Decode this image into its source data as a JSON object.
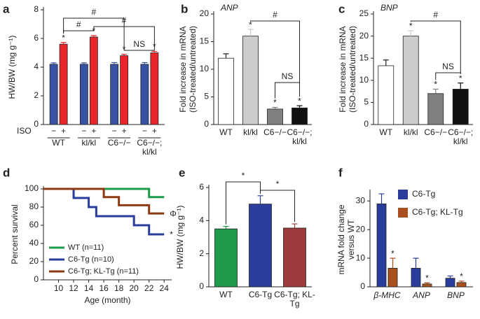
{
  "chart_data": [
    {
      "type": "bar",
      "panel_label": "a",
      "ylabel": "HW/BW (mg g⁻¹)",
      "categories": [
        "WT",
        "kl/kl",
        "C6−/−",
        "C6−/−; kl/kl"
      ],
      "row_label": "ISO",
      "row_values": [
        "−",
        "+"
      ],
      "series": [
        {
          "color": "#3953a4",
          "values": [
            4.2,
            4.2,
            4.2,
            4.2
          ],
          "errors": [
            0.1,
            0.1,
            0.12,
            0.12
          ],
          "significance": [
            null,
            null,
            null,
            null
          ]
        },
        {
          "color": "#e8262b",
          "values": [
            5.6,
            6.1,
            4.8,
            5.0
          ],
          "errors": [
            0.12,
            0.1,
            0.1,
            0.1
          ],
          "significance": [
            "*",
            "*",
            "*",
            "*"
          ]
        }
      ],
      "ylim": [
        0,
        8
      ],
      "yticks": [
        0,
        2,
        4,
        6,
        8
      ],
      "annotations": [
        "#",
        "#",
        "#",
        "NS"
      ]
    },
    {
      "type": "bar",
      "panel_label": "b",
      "title": "ANP",
      "ylabel": [
        "Fold increase in mRNA",
        "(ISO-treated/untreated)"
      ],
      "categories": [
        "WT",
        "kl/kl",
        "C6−/−",
        "C6−/−; kl/kl"
      ],
      "values": [
        12,
        16,
        2.8,
        3.0
      ],
      "errors": [
        0.8,
        1.2,
        0.3,
        0.4
      ],
      "colors": [
        "#ffffff",
        "#cccccc",
        "#808080",
        "#111111"
      ],
      "significance": [
        null,
        "*",
        "*",
        "*"
      ],
      "ylim": [
        0,
        20
      ],
      "yticks": [
        0,
        5,
        10,
        15,
        20
      ],
      "annotations": [
        "#",
        "NS"
      ]
    },
    {
      "type": "bar",
      "panel_label": "c",
      "title": "BNP",
      "ylabel": [
        "Fold increase in mRNA",
        "(ISO-treated/untreated)"
      ],
      "categories": [
        "WT",
        "kl/kl",
        "C6−/−",
        "C6−/−; kl/kl"
      ],
      "values": [
        13.3,
        20,
        7,
        8
      ],
      "errors": [
        1.3,
        1.2,
        1.0,
        1.4
      ],
      "colors": [
        "#ffffff",
        "#cccccc",
        "#808080",
        "#111111"
      ],
      "significance": [
        null,
        "*",
        "*",
        "*"
      ],
      "ylim": [
        0,
        25
      ],
      "yticks": [
        0,
        5,
        10,
        15,
        20,
        25
      ],
      "annotations": [
        "#",
        "NS"
      ]
    },
    {
      "type": "line",
      "step": true,
      "panel_label": "d",
      "xlabel": "Age (month)",
      "ylabel": "Percent survival",
      "xlim": [
        8,
        25
      ],
      "xticks": [
        10,
        12,
        14,
        16,
        18,
        20,
        22,
        24
      ],
      "ylim": [
        0,
        100
      ],
      "yticks": [
        0,
        20,
        40,
        60,
        80,
        100
      ],
      "legend": "lower left",
      "series": [
        {
          "name": "WT (n=11)",
          "color": "#1e9a4b",
          "x": [
            8,
            22,
            24
          ],
          "values": [
            100,
            91,
            91
          ]
        },
        {
          "name": "C6-Tg (n=10)",
          "color": "#2a3c9c",
          "x": [
            8,
            12,
            14,
            15,
            20,
            22,
            24
          ],
          "values": [
            100,
            90,
            80,
            70,
            60,
            50,
            50
          ],
          "end_label": "*"
        },
        {
          "name": "C6-Tg; KL-Tg (n=11)",
          "color": "#8b3a12",
          "x": [
            8,
            16,
            18,
            22,
            24
          ],
          "values": [
            100,
            91,
            82,
            73,
            73
          ],
          "end_label": "Φ"
        }
      ]
    },
    {
      "type": "bar",
      "panel_label": "e",
      "ylabel": "HW/BW (mg g⁻¹)",
      "categories": [
        "WT",
        "C6-Tg",
        "C6-Tg; KL-Tg"
      ],
      "values": [
        3.5,
        5.0,
        3.55
      ],
      "errors": [
        0.15,
        0.5,
        0.25
      ],
      "colors": [
        "#1e9a4b",
        "#2a3c9c",
        "#9b3b3e"
      ],
      "ylim": [
        0,
        6
      ],
      "yticks": [
        0,
        2,
        4,
        6
      ],
      "annotations": [
        "*",
        "*"
      ]
    },
    {
      "type": "bar",
      "panel_label": "f",
      "ylabel": [
        "mRNA fold change",
        "versus WT"
      ],
      "categories": [
        "β-MHC",
        "ANP",
        "BNP"
      ],
      "legend": "upper right",
      "series": [
        {
          "name": "C6-Tg",
          "color": "#2a3c9c",
          "values": [
            29,
            6.5,
            3
          ],
          "errors": [
            3.5,
            3.5,
            0.8
          ],
          "significance": [
            null,
            null,
            null
          ]
        },
        {
          "name": "C6-Tg; KL-Tg",
          "color": "#a9501f",
          "values": [
            6.5,
            1,
            1.5
          ],
          "errors": [
            3.5,
            0.4,
            0.5
          ],
          "significance": [
            "*",
            "*",
            "*"
          ]
        }
      ],
      "ylim": [
        0,
        33
      ],
      "yticks": [
        0,
        10,
        20,
        30
      ]
    }
  ]
}
